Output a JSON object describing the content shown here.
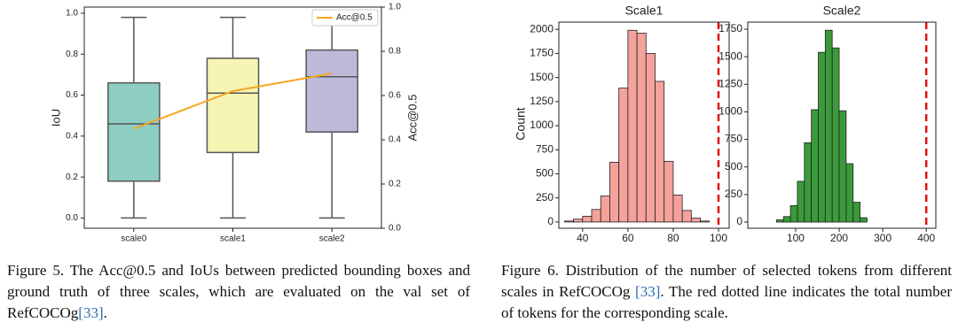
{
  "chart_data": [
    {
      "type": "box",
      "categories": [
        "scale0",
        "scale1",
        "scale2"
      ],
      "boxes": [
        {
          "min": 0,
          "q1": 0.18,
          "median": 0.46,
          "q3": 0.66,
          "max": 0.98,
          "color": "#8ecdc2"
        },
        {
          "min": 0,
          "q1": 0.32,
          "median": 0.61,
          "q3": 0.78,
          "max": 0.98,
          "color": "#f6f5b3"
        },
        {
          "min": 0,
          "q1": 0.42,
          "median": 0.69,
          "q3": 0.82,
          "max": 0.98,
          "color": "#bdb9d9"
        }
      ],
      "line": {
        "name": "Acc@0.5",
        "color": "#f5a623",
        "values": [
          0.45,
          0.62,
          0.7
        ],
        "axis": "y2"
      },
      "ylabel": "IoU",
      "y2label": "Acc@0.5",
      "ylim": [
        -0.05,
        1.03
      ],
      "yticks": [
        {
          "value": 0,
          "label": "0.0"
        },
        0.2,
        0.4,
        0.6,
        0.8,
        {
          "value": 1,
          "label": "1.0"
        }
      ],
      "y2lim": [
        0,
        1
      ],
      "y2ticks": [
        {
          "value": 0,
          "label": "0.0"
        },
        0.2,
        0.4,
        0.6,
        0.8,
        {
          "value": 1,
          "label": "1.0"
        }
      ],
      "legend": "upper right"
    },
    {
      "type": "histogram",
      "title": "Scale1",
      "ylabel": "Count",
      "bins": [
        32,
        36,
        40,
        44,
        48,
        52,
        56,
        60,
        64,
        68,
        72,
        76,
        80,
        84,
        88,
        92,
        96
      ],
      "counts": [
        10,
        30,
        60,
        130,
        270,
        620,
        1390,
        1990,
        1960,
        1750,
        1460,
        630,
        280,
        120,
        40,
        10
      ],
      "color": "#f4a29b",
      "edgecolor": "#222222",
      "xlim": [
        29.5,
        104.7
      ],
      "xticks": [
        40,
        60,
        80,
        100
      ],
      "ylim": [
        -65,
        2075
      ],
      "yticks": [
        0,
        250,
        500,
        750,
        1000,
        1250,
        1500,
        1750,
        2000
      ],
      "vline": {
        "value": 100,
        "color": "#e01010"
      }
    },
    {
      "type": "histogram",
      "title": "Scale2",
      "bins": [
        56,
        72,
        88,
        104,
        120,
        136,
        152,
        168,
        184,
        200,
        216,
        232,
        248,
        264
      ],
      "counts": [
        20,
        50,
        150,
        370,
        720,
        1020,
        1540,
        1740,
        1580,
        1010,
        530,
        180,
        40
      ],
      "color": "#3b9a3b",
      "edgecolor": "#222222",
      "xlim": [
        -10,
        422
      ],
      "xticks": [
        100,
        200,
        300,
        400
      ],
      "ylim": [
        -56,
        1814
      ],
      "yticks": [
        0,
        250,
        500,
        750,
        1000,
        1250,
        1500,
        1750
      ],
      "vline": {
        "value": 400,
        "color": "#e01010"
      }
    }
  ],
  "captions": [
    {
      "before": "Figure 5.  The Acc@0.5 and IoUs between predicted bounding boxes and ground truth of three scales, which are evaluated on the val set of RefCOCOg",
      "citation": "[33]",
      "after": "."
    },
    {
      "before": "Figure 6. Distribution of the number of selected tokens from different scales in RefCOCOg ",
      "citation": "[33]",
      "after": ". The red dotted line indicates the total number of tokens for the corresponding scale."
    }
  ]
}
